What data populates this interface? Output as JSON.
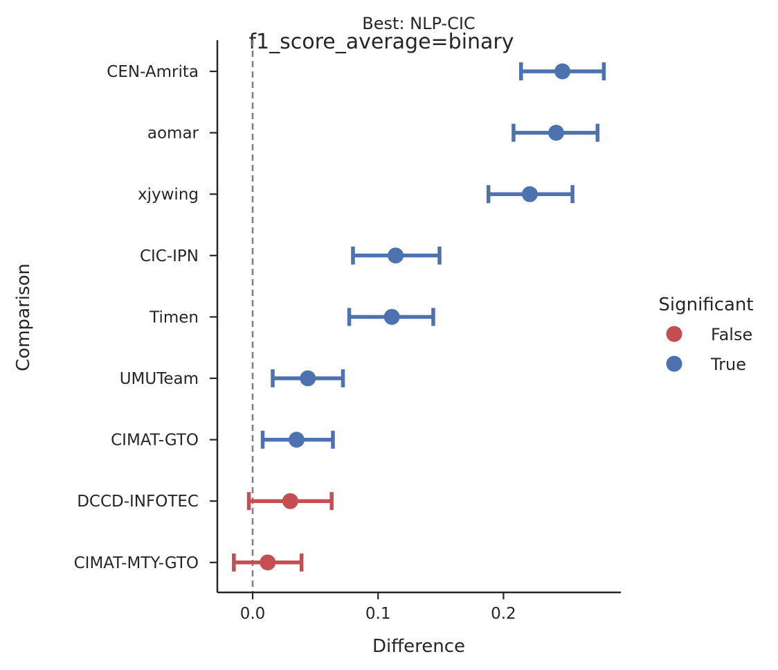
{
  "chart_data": {
    "type": "scatter",
    "subtype": "pointplot-with-errorbars",
    "title": "Best: NLP-CIC",
    "subtitle": "f1_score_average=binary",
    "xlabel": "Difference",
    "ylabel": "Comparison",
    "xlim": [
      -0.03,
      0.29
    ],
    "xticks": [
      0.0,
      0.1,
      0.2
    ],
    "xtick_labels": [
      "0.0",
      "0.1",
      "0.2"
    ],
    "reference_line": 0.0,
    "grid": false,
    "legend": {
      "title": "Significant",
      "placement": "right",
      "entries": [
        {
          "label": "False",
          "color": "#c44e52"
        },
        {
          "label": "True",
          "color": "#4c72b0"
        }
      ]
    },
    "categories": [
      "CEN-Amrita",
      "aomar",
      "xjywing",
      "CIC-IPN",
      "Timen",
      "UMUTeam",
      "CIMAT-GTO",
      "DCCD-INFOTEC",
      "CIMAT-MTY-GTO"
    ],
    "points": [
      {
        "name": "CEN-Amrita",
        "value": 0.247,
        "low": 0.214,
        "high": 0.28,
        "significant": true
      },
      {
        "name": "aomar",
        "value": 0.242,
        "low": 0.208,
        "high": 0.275,
        "significant": true
      },
      {
        "name": "xjywing",
        "value": 0.221,
        "low": 0.188,
        "high": 0.255,
        "significant": true
      },
      {
        "name": "CIC-IPN",
        "value": 0.114,
        "low": 0.08,
        "high": 0.149,
        "significant": true
      },
      {
        "name": "Timen",
        "value": 0.111,
        "low": 0.077,
        "high": 0.144,
        "significant": true
      },
      {
        "name": "UMUTeam",
        "value": 0.044,
        "low": 0.016,
        "high": 0.072,
        "significant": true
      },
      {
        "name": "CIMAT-GTO",
        "value": 0.035,
        "low": 0.008,
        "high": 0.064,
        "significant": true
      },
      {
        "name": "DCCD-INFOTEC",
        "value": 0.03,
        "low": -0.003,
        "high": 0.063,
        "significant": false
      },
      {
        "name": "CIMAT-MTY-GTO",
        "value": 0.012,
        "low": -0.015,
        "high": 0.039,
        "significant": false
      }
    ],
    "colors": {
      "true": "#4c72b0",
      "false": "#c44e52",
      "reference": "#808080",
      "axis": "#262626"
    }
  }
}
